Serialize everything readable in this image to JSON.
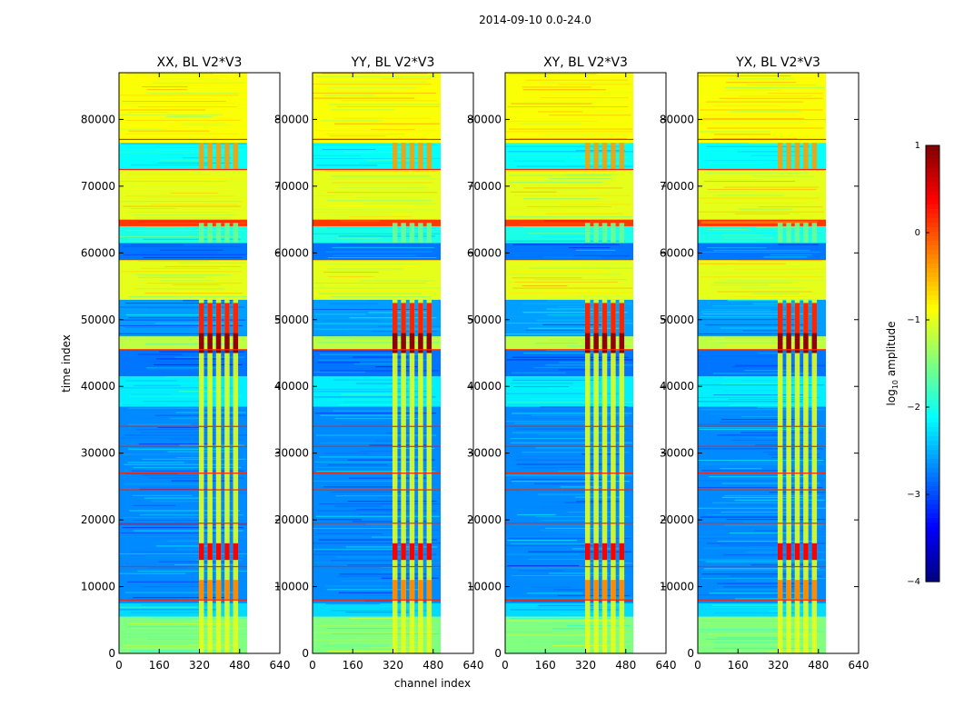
{
  "chart_data": {
    "type": "heatmap",
    "title": "2014-09-10 0.0-24.0",
    "xlabel": "channel index",
    "ylabel": "time index",
    "xlim": [
      0,
      640
    ],
    "ylim": [
      0,
      87000
    ],
    "data_channel_max": 510,
    "xticks": [
      0,
      160,
      320,
      480,
      640
    ],
    "yticks": [
      0,
      10000,
      20000,
      30000,
      40000,
      50000,
      60000,
      70000,
      80000
    ],
    "panels": [
      {
        "title": "XX, BL V2*V3"
      },
      {
        "title": "YY, BL V2*V3"
      },
      {
        "title": "XY, BL V2*V3"
      },
      {
        "title": "YX, BL V2*V3"
      }
    ],
    "colorbar": {
      "label": "log10 amplitude",
      "label_base": "log",
      "label_sub": "10",
      "label_rest": " amplitude",
      "range": [
        -4,
        1
      ],
      "ticks": [
        1,
        0,
        -1,
        -2,
        -3,
        -4
      ],
      "tick_labels": [
        "1",
        "0",
        "−1",
        "−2",
        "−3",
        "−4"
      ]
    },
    "time_bands": [
      {
        "t0": 0,
        "t1": 5500,
        "level": -1.5
      },
      {
        "t0": 5500,
        "t1": 7500,
        "level": -2.3
      },
      {
        "t0": 7500,
        "t1": 17500,
        "level": -2.7
      },
      {
        "t0": 17500,
        "t1": 37000,
        "level": -2.7
      },
      {
        "t0": 37000,
        "t1": 41500,
        "level": -2.2
      },
      {
        "t0": 41500,
        "t1": 45500,
        "level": -2.8
      },
      {
        "t0": 45500,
        "t1": 47500,
        "level": -1.2
      },
      {
        "t0": 47500,
        "t1": 53000,
        "level": -2.6
      },
      {
        "t0": 53000,
        "t1": 59000,
        "level": -1.0
      },
      {
        "t0": 59000,
        "t1": 61500,
        "level": -2.8
      },
      {
        "t0": 61500,
        "t1": 64000,
        "level": -2.0
      },
      {
        "t0": 64000,
        "t1": 65000,
        "level": 0.1
      },
      {
        "t0": 65000,
        "t1": 72500,
        "level": -1.0
      },
      {
        "t0": 72500,
        "t1": 76500,
        "level": -2.1
      },
      {
        "t0": 76500,
        "t1": 87000,
        "level": -0.9
      }
    ],
    "rfi_columns": [
      [
        318,
        338
      ],
      [
        352,
        372
      ],
      [
        386,
        406
      ],
      [
        420,
        440
      ],
      [
        454,
        474
      ]
    ],
    "hot_bands": [
      {
        "t0": 8000,
        "t1": 11000,
        "level": -0.3
      },
      {
        "t0": 14000,
        "t1": 16500,
        "level": 0.4
      },
      {
        "t0": 45000,
        "t1": 48000,
        "level": 0.9
      },
      {
        "t0": 48000,
        "t1": 52500,
        "level": 0.2
      }
    ],
    "flag_lines": [
      8000,
      13000,
      19500,
      24500,
      27000,
      31000,
      34000,
      45500,
      59000,
      72500,
      77000
    ]
  }
}
